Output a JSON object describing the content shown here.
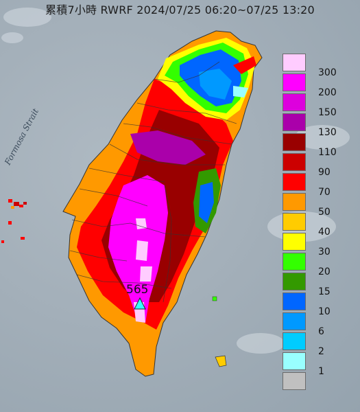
{
  "title": "累積7小時 RWRF 2024/07/25 06:20~07/25 13:20",
  "strait_label": "Formosa Strait",
  "max_label": "565",
  "legend": [
    {
      "label": "300",
      "color": "#ffccff"
    },
    {
      "label": "200",
      "color": "#ff00ff"
    },
    {
      "label": "150",
      "color": "#dd00dd"
    },
    {
      "label": "130",
      "color": "#aa00aa"
    },
    {
      "label": "110",
      "color": "#990000"
    },
    {
      "label": "90",
      "color": "#cc0000"
    },
    {
      "label": "70",
      "color": "#ff0000"
    },
    {
      "label": "50",
      "color": "#ff9900"
    },
    {
      "label": "40",
      "color": "#ffcc00"
    },
    {
      "label": "30",
      "color": "#ffff00"
    },
    {
      "label": "20",
      "color": "#33ff00"
    },
    {
      "label": "15",
      "color": "#339900"
    },
    {
      "label": "10",
      "color": "#0066ff"
    },
    {
      "label": "6",
      "color": "#0099ff"
    },
    {
      "label": "2",
      "color": "#00ccff"
    },
    {
      "label": "1",
      "color": "#99ffff"
    },
    {
      "label": "",
      "color": "#c0c0c0"
    }
  ]
}
